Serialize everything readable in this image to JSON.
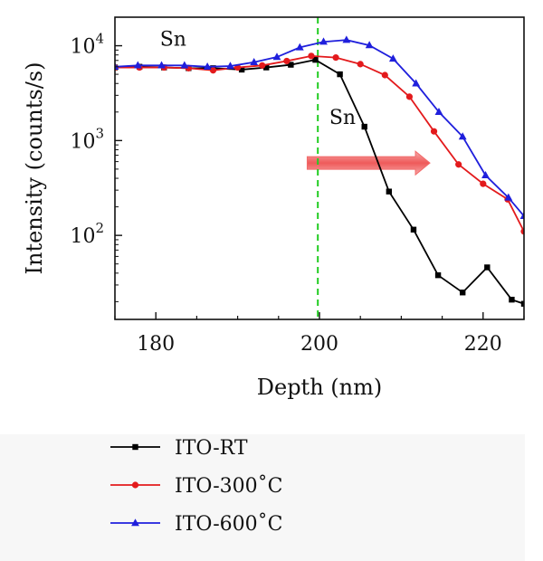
{
  "chart_data": {
    "type": "line",
    "xlabel": "Depth (nm)",
    "ylabel": "Intensity (counts/s)",
    "yscale": "log",
    "xlim": [
      175,
      225
    ],
    "ylim": [
      13,
      20000
    ],
    "grid": false,
    "legend_position": "below",
    "x_ticks": [
      180,
      200,
      220
    ],
    "y_ticks": [
      {
        "value": 100,
        "base": "10",
        "exp": "2"
      },
      {
        "value": 1000,
        "base": "10",
        "exp": "3"
      },
      {
        "value": 10000,
        "base": "10",
        "exp": "4"
      }
    ],
    "annotations": [
      {
        "text": "Sn",
        "x": 180.5,
        "y": 10000
      },
      {
        "text": "Sn",
        "x": 201.2,
        "y": 1500
      }
    ],
    "reference_line": {
      "x": 199.8,
      "color": "#22cc22",
      "style": "dashed"
    },
    "arrow": {
      "x_start": 198.5,
      "x_end": 213.5,
      "y": 580,
      "color": "#f26b6b"
    },
    "series": [
      {
        "name": "ITO-RT",
        "color": "#000000",
        "marker": "square",
        "x": [
          175,
          178,
          181,
          184,
          187,
          190.5,
          193.5,
          196.5,
          199.5,
          202.5,
          205.5,
          208.5,
          211.5,
          214.5,
          217.5,
          220.5,
          223.5,
          225
        ],
        "y": [
          5900,
          6000,
          5900,
          5800,
          5800,
          5600,
          5900,
          6300,
          7100,
          5000,
          1400,
          290,
          115,
          38,
          25,
          46,
          21,
          19
        ]
      },
      {
        "name": "ITO-300˚C",
        "color": "#e31a1c",
        "marker": "circle",
        "x": [
          175,
          178,
          181,
          184,
          187,
          190,
          193,
          196,
          199,
          202,
          205,
          208,
          211,
          214,
          217,
          220,
          223,
          225
        ],
        "y": [
          5900,
          5900,
          5900,
          5800,
          5500,
          5900,
          6200,
          6900,
          7800,
          7500,
          6400,
          4900,
          2900,
          1250,
          560,
          350,
          240,
          110
        ]
      },
      {
        "name": "ITO-600˚C",
        "color": "#1f1fdc",
        "marker": "triangle",
        "x": [
          175,
          177.8,
          180.7,
          183.5,
          186.3,
          189.1,
          192,
          194.8,
          197.6,
          200.5,
          203.3,
          206.1,
          209,
          211.8,
          214.6,
          217.5,
          220.3,
          223.1,
          225
        ],
        "y": [
          6000,
          6200,
          6200,
          6200,
          6000,
          6100,
          6700,
          7600,
          9600,
          11000,
          11500,
          10100,
          7300,
          4000,
          2000,
          1100,
          430,
          250,
          160
        ]
      }
    ]
  }
}
